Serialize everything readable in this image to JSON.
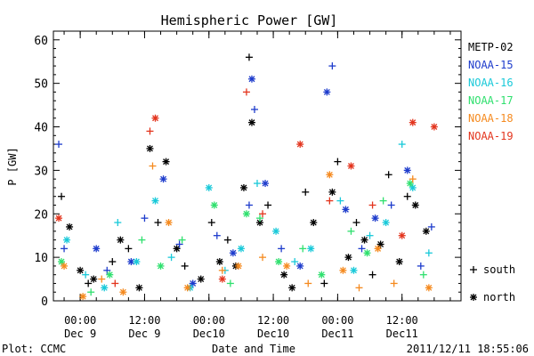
{
  "chart_data": {
    "type": "scatter",
    "title": "Hemispheric Power [GW]",
    "ylabel": "P [GW]",
    "xlabel": "Date and Time",
    "ylim": [
      0,
      62
    ],
    "yticks": [
      0,
      10,
      20,
      30,
      40,
      50,
      60
    ],
    "xlim": [
      "2011-12-08 19:00",
      "2011-12-11 23:00"
    ],
    "xticks": [
      {
        "time": "2011-12-09 00:00",
        "label1": "00:00",
        "label2": "Dec 9"
      },
      {
        "time": "2011-12-09 12:00",
        "label1": "12:00",
        "label2": "Dec 9"
      },
      {
        "time": "2011-12-10 00:00",
        "label1": "00:00",
        "label2": "Dec10"
      },
      {
        "time": "2011-12-10 12:00",
        "label1": "12:00",
        "label2": "Dec10"
      },
      {
        "time": "2011-12-11 00:00",
        "label1": "00:00",
        "label2": "Dec11"
      },
      {
        "time": "2011-12-11 12:00",
        "label1": "12:00",
        "label2": "Dec11"
      }
    ],
    "legend_placement": "right",
    "marker_legend": [
      {
        "symbol": "+",
        "label": "south"
      },
      {
        "symbol": "*",
        "label": "north"
      }
    ],
    "series": [
      {
        "name": "METP-02",
        "color": "#000000",
        "points": [
          [
            "2011-12-08 20:30",
            24,
            "+"
          ],
          [
            "2011-12-08 22:00",
            17,
            "*"
          ],
          [
            "2011-12-09 00:00",
            7,
            "*"
          ],
          [
            "2011-12-09 01:30",
            4,
            "+"
          ],
          [
            "2011-12-09 02:30",
            5,
            "*"
          ],
          [
            "2011-12-09 06:00",
            9,
            "+"
          ],
          [
            "2011-12-09 07:30",
            14,
            "*"
          ],
          [
            "2011-12-09 09:00",
            12,
            "+"
          ],
          [
            "2011-12-09 11:00",
            3,
            "*"
          ],
          [
            "2011-12-09 13:00",
            35,
            "*"
          ],
          [
            "2011-12-09 14:30",
            18,
            "+"
          ],
          [
            "2011-12-09 16:00",
            32,
            "*"
          ],
          [
            "2011-12-09 18:00",
            12,
            "*"
          ],
          [
            "2011-12-09 19:30",
            8,
            "+"
          ],
          [
            "2011-12-09 22:30",
            5,
            "*"
          ],
          [
            "2011-12-10 00:30",
            18,
            "+"
          ],
          [
            "2011-12-10 02:00",
            9,
            "*"
          ],
          [
            "2011-12-10 03:30",
            14,
            "+"
          ],
          [
            "2011-12-10 05:00",
            8,
            "*"
          ],
          [
            "2011-12-10 06:30",
            26,
            "*"
          ],
          [
            "2011-12-10 08:00",
            41,
            "*"
          ],
          [
            "2011-12-10 09:30",
            18,
            "*"
          ],
          [
            "2011-12-10 11:00",
            22,
            "+"
          ],
          [
            "2011-12-10 14:00",
            6,
            "*"
          ],
          [
            "2011-12-10 15:30",
            3,
            "*"
          ],
          [
            "2011-12-10 18:00",
            25,
            "+"
          ],
          [
            "2011-12-10 19:30",
            18,
            "*"
          ],
          [
            "2011-12-10 21:30",
            4,
            "+"
          ],
          [
            "2011-12-10 23:00",
            25,
            "*"
          ],
          [
            "2011-12-11 00:00",
            32,
            "+"
          ],
          [
            "2011-12-11 02:00",
            10,
            "*"
          ],
          [
            "2011-12-11 03:30",
            18,
            "+"
          ],
          [
            "2011-12-11 05:00",
            14,
            "*"
          ],
          [
            "2011-12-11 06:30",
            6,
            "+"
          ],
          [
            "2011-12-11 08:00",
            13,
            "*"
          ],
          [
            "2011-12-11 09:30",
            29,
            "+"
          ],
          [
            "2011-12-11 11:30",
            9,
            "*"
          ],
          [
            "2011-12-11 13:00",
            24,
            "+"
          ],
          [
            "2011-12-11 14:30",
            22,
            "*"
          ],
          [
            "2011-12-11 16:30",
            16,
            "*"
          ],
          [
            "2011-12-10 07:30",
            56,
            "+"
          ]
        ]
      },
      {
        "name": "NOAA-15",
        "color": "#1e3ccc",
        "points": [
          [
            "2011-12-08 20:00",
            36,
            "+"
          ],
          [
            "2011-12-08 21:00",
            12,
            "+"
          ],
          [
            "2011-12-09 03:00",
            12,
            "*"
          ],
          [
            "2011-12-09 05:00",
            7,
            "+"
          ],
          [
            "2011-12-09 09:30",
            9,
            "*"
          ],
          [
            "2011-12-09 12:00",
            19,
            "+"
          ],
          [
            "2011-12-09 15:30",
            28,
            "*"
          ],
          [
            "2011-12-09 18:30",
            13,
            "+"
          ],
          [
            "2011-12-09 21:00",
            4,
            "*"
          ],
          [
            "2011-12-10 01:30",
            15,
            "+"
          ],
          [
            "2011-12-10 04:30",
            11,
            "*"
          ],
          [
            "2011-12-10 07:30",
            22,
            "+"
          ],
          [
            "2011-12-10 08:00",
            51,
            "*"
          ],
          [
            "2011-12-10 08:30",
            44,
            "+"
          ],
          [
            "2011-12-10 10:30",
            27,
            "*"
          ],
          [
            "2011-12-10 13:30",
            12,
            "+"
          ],
          [
            "2011-12-10 17:00",
            8,
            "*"
          ],
          [
            "2011-12-10 22:00",
            48,
            "*"
          ],
          [
            "2011-12-10 23:00",
            54,
            "+"
          ],
          [
            "2011-12-11 01:30",
            21,
            "*"
          ],
          [
            "2011-12-11 04:30",
            12,
            "+"
          ],
          [
            "2011-12-11 07:00",
            19,
            "*"
          ],
          [
            "2011-12-11 10:00",
            22,
            "+"
          ],
          [
            "2011-12-11 13:00",
            30,
            "*"
          ],
          [
            "2011-12-11 15:30",
            8,
            "+"
          ],
          [
            "2011-12-11 17:30",
            17,
            "+"
          ]
        ]
      },
      {
        "name": "NOAA-16",
        "color": "#19c9d9",
        "points": [
          [
            "2011-12-08 21:30",
            14,
            "*"
          ],
          [
            "2011-12-09 01:00",
            6,
            "+"
          ],
          [
            "2011-12-09 04:30",
            3,
            "*"
          ],
          [
            "2011-12-09 07:00",
            18,
            "+"
          ],
          [
            "2011-12-09 10:30",
            9,
            "*"
          ],
          [
            "2011-12-09 14:00",
            23,
            "*"
          ],
          [
            "2011-12-09 17:00",
            10,
            "+"
          ],
          [
            "2011-12-09 20:30",
            3,
            "*"
          ],
          [
            "2011-12-10 00:00",
            26,
            "*"
          ],
          [
            "2011-12-10 03:00",
            7,
            "+"
          ],
          [
            "2011-12-10 06:00",
            12,
            "*"
          ],
          [
            "2011-12-10 09:00",
            27,
            "+"
          ],
          [
            "2011-12-10 12:30",
            16,
            "*"
          ],
          [
            "2011-12-10 16:00",
            9,
            "+"
          ],
          [
            "2011-12-10 19:00",
            12,
            "*"
          ],
          [
            "2011-12-11 00:30",
            23,
            "+"
          ],
          [
            "2011-12-11 03:00",
            7,
            "*"
          ],
          [
            "2011-12-11 06:00",
            15,
            "+"
          ],
          [
            "2011-12-11 09:00",
            18,
            "*"
          ],
          [
            "2011-12-11 12:00",
            36,
            "+"
          ],
          [
            "2011-12-11 14:00",
            26,
            "*"
          ],
          [
            "2011-12-11 17:00",
            11,
            "+"
          ]
        ]
      },
      {
        "name": "NOAA-17",
        "color": "#2fe06e",
        "points": [
          [
            "2011-12-08 20:30",
            9,
            "*"
          ],
          [
            "2011-12-09 02:00",
            2,
            "+"
          ],
          [
            "2011-12-09 05:30",
            6,
            "*"
          ],
          [
            "2011-12-09 11:30",
            14,
            "+"
          ],
          [
            "2011-12-09 15:00",
            8,
            "*"
          ],
          [
            "2011-12-09 19:00",
            14,
            "+"
          ],
          [
            "2011-12-10 01:00",
            22,
            "*"
          ],
          [
            "2011-12-10 04:00",
            4,
            "+"
          ],
          [
            "2011-12-10 07:00",
            20,
            "*"
          ],
          [
            "2011-12-10 09:30",
            19,
            "+"
          ],
          [
            "2011-12-10 13:00",
            9,
            "*"
          ],
          [
            "2011-12-10 17:30",
            12,
            "+"
          ],
          [
            "2011-12-10 21:00",
            6,
            "*"
          ],
          [
            "2011-12-11 02:30",
            16,
            "+"
          ],
          [
            "2011-12-11 05:30",
            11,
            "*"
          ],
          [
            "2011-12-11 08:30",
            23,
            "+"
          ],
          [
            "2011-12-11 13:30",
            27,
            "*"
          ],
          [
            "2011-12-11 16:00",
            6,
            "+"
          ]
        ]
      },
      {
        "name": "NOAA-18",
        "color": "#f58a1f",
        "points": [
          [
            "2011-12-08 21:00",
            8,
            "*"
          ],
          [
            "2011-12-09 00:30",
            1,
            "*"
          ],
          [
            "2011-12-09 04:00",
            5,
            "+"
          ],
          [
            "2011-12-09 08:00",
            2,
            "*"
          ],
          [
            "2011-12-09 13:30",
            31,
            "+"
          ],
          [
            "2011-12-09 16:30",
            18,
            "*"
          ],
          [
            "2011-12-09 20:00",
            3,
            "*"
          ],
          [
            "2011-12-10 02:30",
            7,
            "+"
          ],
          [
            "2011-12-10 05:30",
            8,
            "*"
          ],
          [
            "2011-12-10 10:00",
            10,
            "+"
          ],
          [
            "2011-12-10 14:30",
            8,
            "*"
          ],
          [
            "2011-12-10 18:30",
            4,
            "+"
          ],
          [
            "2011-12-10 22:30",
            29,
            "*"
          ],
          [
            "2011-12-11 01:00",
            7,
            "*"
          ],
          [
            "2011-12-11 04:00",
            3,
            "+"
          ],
          [
            "2011-12-11 07:30",
            12,
            "*"
          ],
          [
            "2011-12-11 10:30",
            4,
            "+"
          ],
          [
            "2011-12-11 14:00",
            28,
            "+"
          ],
          [
            "2011-12-11 17:00",
            3,
            "*"
          ]
        ]
      },
      {
        "name": "NOAA-19",
        "color": "#e3351e",
        "points": [
          [
            "2011-12-08 20:00",
            19,
            "*"
          ],
          [
            "2011-12-09 13:00",
            39,
            "+"
          ],
          [
            "2011-12-09 14:00",
            42,
            "*"
          ],
          [
            "2011-12-09 06:30",
            4,
            "+"
          ],
          [
            "2011-12-10 07:00",
            48,
            "+"
          ],
          [
            "2011-12-10 02:30",
            5,
            "*"
          ],
          [
            "2011-12-10 10:00",
            20,
            "+"
          ],
          [
            "2011-12-10 17:00",
            36,
            "*"
          ],
          [
            "2011-12-10 22:30",
            23,
            "+"
          ],
          [
            "2011-12-11 02:30",
            31,
            "*"
          ],
          [
            "2011-12-11 06:30",
            22,
            "+"
          ],
          [
            "2011-12-11 12:00",
            15,
            "*"
          ],
          [
            "2011-12-11 14:00",
            41,
            "*"
          ],
          [
            "2011-12-11 18:00",
            40,
            "*"
          ]
        ]
      }
    ]
  },
  "footer": {
    "plot_credit": "Plot: CCMC",
    "timestamp": "2011/12/11 18:55:06"
  }
}
